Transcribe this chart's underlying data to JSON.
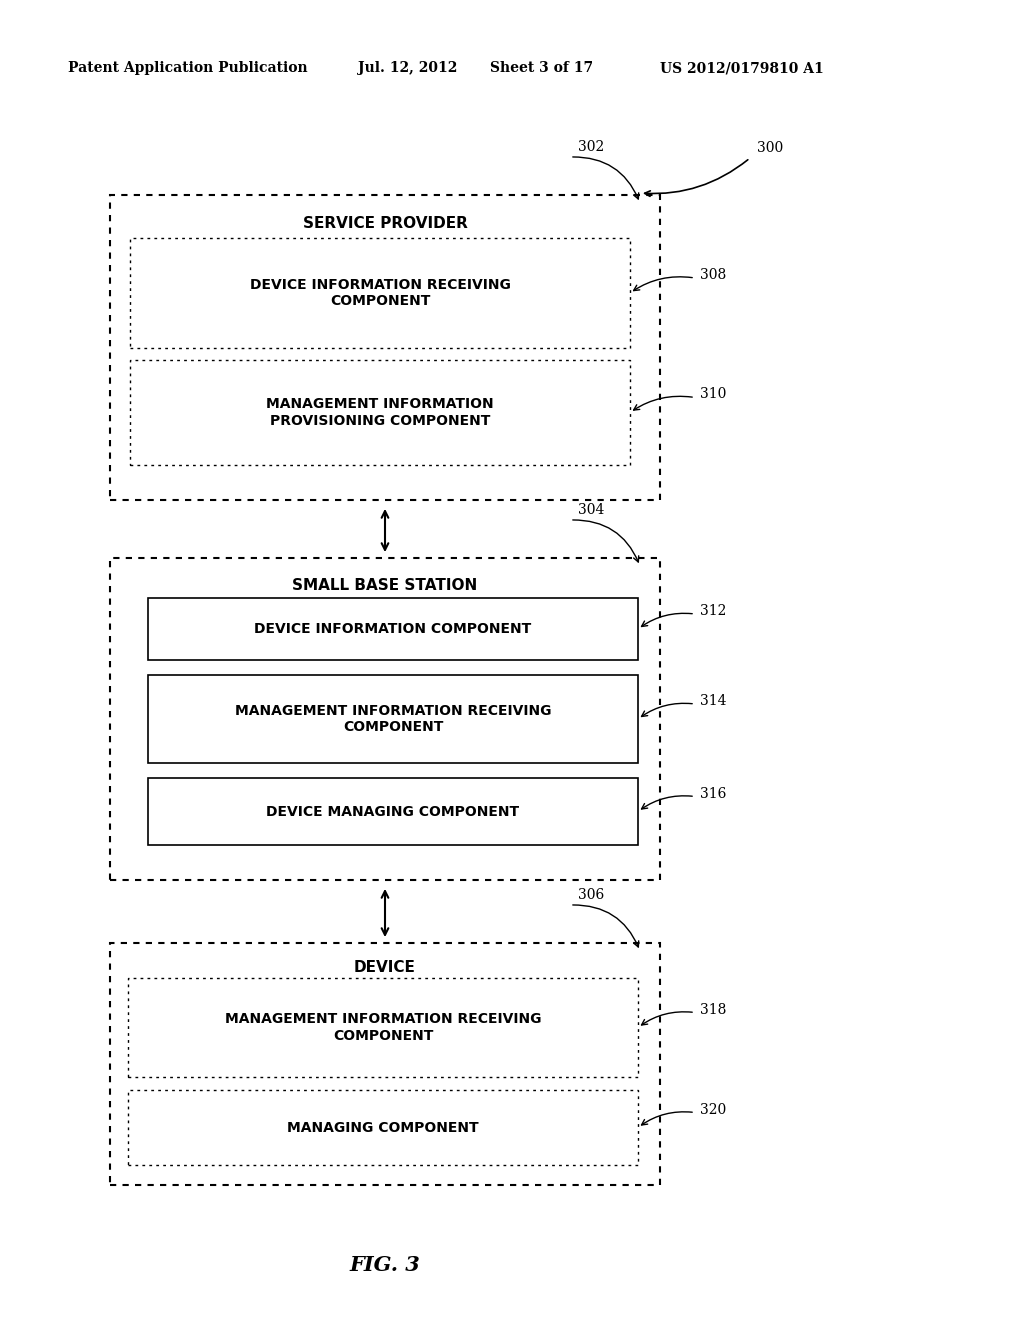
{
  "bg_color": "#ffffff",
  "header_text": "Patent Application Publication",
  "header_date": "Jul. 12, 2012",
  "header_sheet": "Sheet 3 of 17",
  "header_patent": "US 2012/0179810 A1",
  "fig_label": "FIG. 3",
  "ref_300": "300",
  "ref_302": "302",
  "ref_304": "304",
  "ref_306": "306",
  "ref_308": "308",
  "ref_310": "310",
  "ref_312": "312",
  "ref_314": "314",
  "ref_316": "316",
  "ref_318": "318",
  "ref_320": "320",
  "sp_label": "SERVICE PROVIDER",
  "sp_sub1_label": "DEVICE INFORMATION RECEIVING\nCOMPONENT",
  "sp_sub2_label": "MANAGEMENT INFORMATION\nPROVISIONING COMPONENT",
  "sbs_label": "SMALL BASE STATION",
  "sbs_sub1_label": "DEVICE INFORMATION COMPONENT",
  "sbs_sub2_label": "MANAGEMENT INFORMATION RECEIVING\nCOMPONENT",
  "sbs_sub3_label": "DEVICE MANAGING COMPONENT",
  "dev_label": "DEVICE",
  "dev_sub1_label": "MANAGEMENT INFORMATION RECEIVING\nCOMPONENT",
  "dev_sub2_label": "MANAGING COMPONENT"
}
